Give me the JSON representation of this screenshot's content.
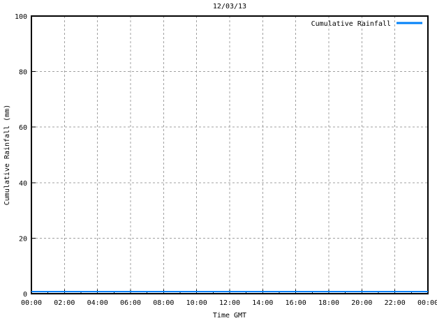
{
  "chart_data": {
    "type": "line",
    "title": "12/03/13",
    "xlabel": "Time GMT",
    "ylabel": "Cumulative Rainfall (mm)",
    "xlim_hours": [
      0,
      24
    ],
    "ylim": [
      0,
      100
    ],
    "x_tick_hours": [
      0,
      2,
      4,
      6,
      8,
      10,
      12,
      14,
      16,
      18,
      20,
      22,
      24
    ],
    "x_tick_labels": [
      "00:00",
      "02:00",
      "04:00",
      "06:00",
      "08:00",
      "10:00",
      "12:00",
      "14:00",
      "16:00",
      "18:00",
      "20:00",
      "22:00",
      "00:00"
    ],
    "y_ticks": [
      0,
      20,
      40,
      60,
      80,
      100
    ],
    "minor_x_tick_every_hours": 1,
    "grid": true,
    "legend": {
      "label": "Cumulative Rainfall",
      "position": "top-right-inside"
    },
    "series": [
      {
        "name": "Cumulative Rainfall",
        "color": "#0080f8",
        "x_hours": [
          0,
          2,
          4,
          6,
          8,
          10,
          12,
          14,
          16,
          18,
          20,
          22,
          24
        ],
        "values": [
          0,
          0,
          0,
          0,
          0,
          0,
          0,
          0,
          0,
          0,
          0,
          0,
          0
        ]
      }
    ]
  },
  "colors": {
    "background": "#ffffff",
    "border": "#000000",
    "grid": "#a0a0a0",
    "text": "#000000",
    "line": "#0080f8"
  }
}
